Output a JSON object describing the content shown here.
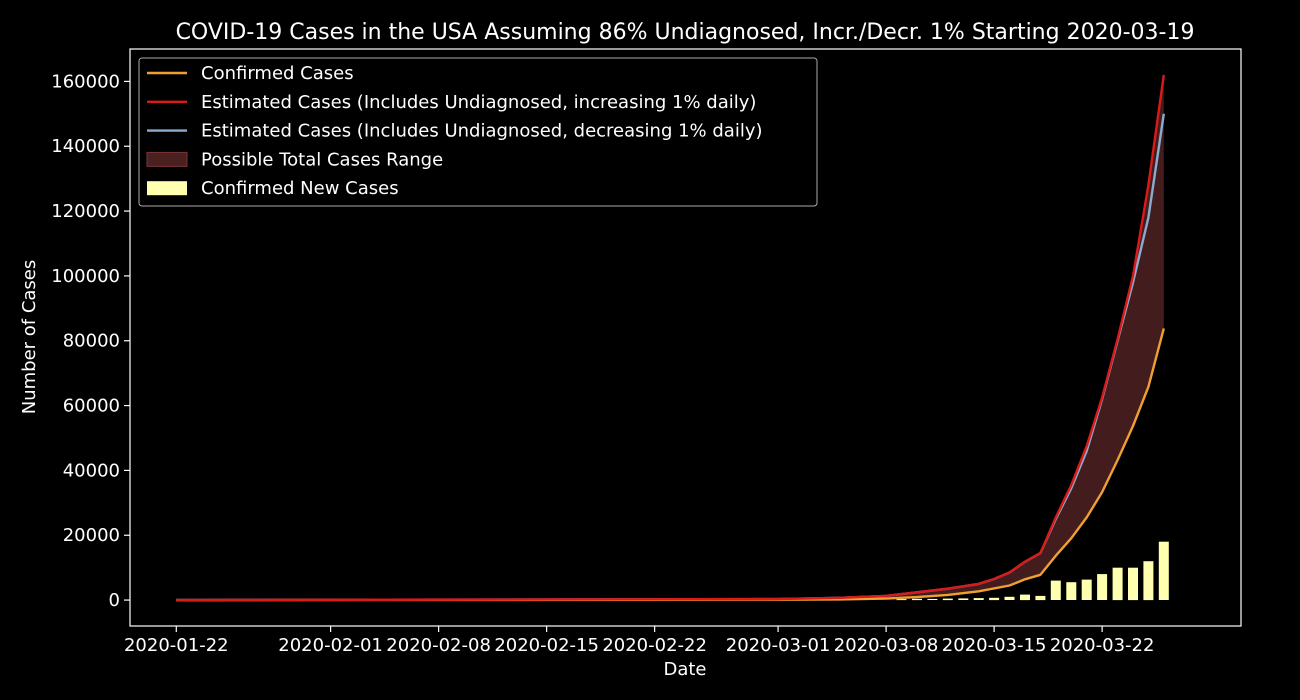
{
  "chart_data": {
    "type": "line",
    "title": "COVID-19 Cases in the USA Assuming 86% Undiagnosed, Incr./Decr. 1% Starting 2020-03-19",
    "xlabel": "Date",
    "ylabel": "Number of Cases",
    "ylim": [
      -8000,
      170000
    ],
    "xlim": [
      "2020-01-19",
      "2020-03-31"
    ],
    "x_tick_labels": [
      "2020-01-22",
      "2020-02-01",
      "2020-02-08",
      "2020-02-15",
      "2020-02-22",
      "2020-03-01",
      "2020-03-08",
      "2020-03-15",
      "2020-03-22"
    ],
    "y_tick_labels": [
      "0",
      "20000",
      "40000",
      "60000",
      "80000",
      "100000",
      "120000",
      "140000",
      "160000"
    ],
    "y_ticks": [
      0,
      20000,
      40000,
      60000,
      80000,
      100000,
      120000,
      140000,
      160000
    ],
    "grid": false,
    "legend_position": "top-left",
    "colors": {
      "background": "#000000",
      "confirmed": "#f0a030",
      "estimated_increasing": "#d91a1a",
      "estimated_decreasing": "#8aaad0",
      "range_fill": "#4a2020",
      "new_cases_bar": "#ffffb0",
      "axes": "#ffffff"
    },
    "legend": [
      {
        "label": "Confirmed Cases",
        "kind": "line",
        "color": "#f0a030"
      },
      {
        "label": "Estimated Cases (Includes Undiagnosed, increasing 1% daily)",
        "kind": "line",
        "color": "#d91a1a"
      },
      {
        "label": "Estimated Cases (Includes Undiagnosed, decreasing 1% daily)",
        "kind": "line",
        "color": "#8aaad0"
      },
      {
        "label": "Possible Total Cases Range",
        "kind": "fill",
        "color": "#4a2020"
      },
      {
        "label": "Confirmed New Cases",
        "kind": "bar",
        "color": "#ffffb0"
      }
    ],
    "series": [
      {
        "name": "Confirmed Cases",
        "points": [
          [
            "2020-01-22",
            0
          ],
          [
            "2020-03-01",
            100
          ],
          [
            "2020-03-05",
            200
          ],
          [
            "2020-03-08",
            450
          ],
          [
            "2020-03-10",
            900
          ],
          [
            "2020-03-12",
            1600
          ],
          [
            "2020-03-14",
            2700
          ],
          [
            "2020-03-16",
            4500
          ],
          [
            "2020-03-17",
            6400
          ],
          [
            "2020-03-18",
            7800
          ],
          [
            "2020-03-19",
            13700
          ],
          [
            "2020-03-20",
            19100
          ],
          [
            "2020-03-21",
            25500
          ],
          [
            "2020-03-22",
            33300
          ],
          [
            "2020-03-23",
            43200
          ],
          [
            "2020-03-24",
            53700
          ],
          [
            "2020-03-25",
            65800
          ],
          [
            "2020-03-26",
            83800
          ]
        ]
      },
      {
        "name": "Estimated Cases (Includes Undiagnosed, increasing 1% daily)",
        "points": [
          [
            "2020-01-22",
            0
          ],
          [
            "2020-03-01",
            300
          ],
          [
            "2020-03-05",
            700
          ],
          [
            "2020-03-08",
            1300
          ],
          [
            "2020-03-10",
            2400
          ],
          [
            "2020-03-12",
            3500
          ],
          [
            "2020-03-14",
            5000
          ],
          [
            "2020-03-15",
            6500
          ],
          [
            "2020-03-16",
            8500
          ],
          [
            "2020-03-17",
            11800
          ],
          [
            "2020-03-18",
            14500
          ],
          [
            "2020-03-19",
            25500
          ],
          [
            "2020-03-20",
            35500
          ],
          [
            "2020-03-21",
            47500
          ],
          [
            "2020-03-22",
            62500
          ],
          [
            "2020-03-23",
            80500
          ],
          [
            "2020-03-24",
            100000
          ],
          [
            "2020-03-25",
            128000
          ],
          [
            "2020-03-26",
            162000
          ]
        ]
      },
      {
        "name": "Estimated Cases (Includes Undiagnosed, decreasing 1% daily)",
        "points": [
          [
            "2020-01-22",
            0
          ],
          [
            "2020-03-01",
            300
          ],
          [
            "2020-03-05",
            700
          ],
          [
            "2020-03-08",
            1300
          ],
          [
            "2020-03-10",
            2400
          ],
          [
            "2020-03-12",
            3500
          ],
          [
            "2020-03-14",
            5000
          ],
          [
            "2020-03-15",
            6500
          ],
          [
            "2020-03-16",
            8500
          ],
          [
            "2020-03-17",
            11800
          ],
          [
            "2020-03-18",
            14500
          ],
          [
            "2020-03-19",
            25000
          ],
          [
            "2020-03-20",
            34500
          ],
          [
            "2020-03-21",
            46000
          ],
          [
            "2020-03-22",
            62000
          ],
          [
            "2020-03-23",
            80000
          ],
          [
            "2020-03-24",
            98000
          ],
          [
            "2020-03-25",
            118000
          ],
          [
            "2020-03-26",
            150000
          ]
        ]
      }
    ],
    "bars": {
      "name": "Confirmed New Cases",
      "points": [
        [
          "2020-03-09",
          300
        ],
        [
          "2020-03-10",
          400
        ],
        [
          "2020-03-11",
          350
        ],
        [
          "2020-03-12",
          450
        ],
        [
          "2020-03-13",
          500
        ],
        [
          "2020-03-14",
          600
        ],
        [
          "2020-03-15",
          700
        ],
        [
          "2020-03-16",
          1000
        ],
        [
          "2020-03-17",
          1700
        ],
        [
          "2020-03-18",
          1300
        ],
        [
          "2020-03-19",
          6000
        ],
        [
          "2020-03-20",
          5500
        ],
        [
          "2020-03-21",
          6300
        ],
        [
          "2020-03-22",
          8000
        ],
        [
          "2020-03-23",
          10000
        ],
        [
          "2020-03-24",
          10000
        ],
        [
          "2020-03-25",
          12000
        ],
        [
          "2020-03-26",
          18000
        ]
      ]
    }
  }
}
